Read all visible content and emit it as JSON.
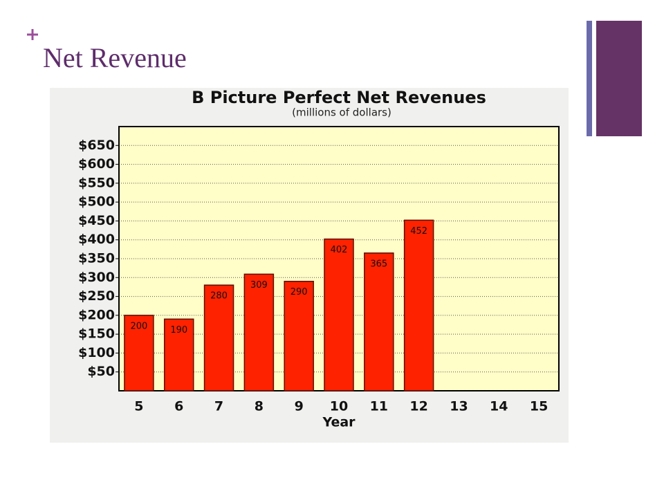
{
  "slide": {
    "title": "Net Revenue"
  },
  "chart_data": {
    "type": "bar",
    "title": "B Picture Perfect Net Revenues",
    "subtitle": "(millions of dollars)",
    "x_label": "Year",
    "categories": [
      "5",
      "6",
      "7",
      "8",
      "9",
      "10",
      "11",
      "12",
      "13",
      "14",
      "15"
    ],
    "values": [
      200,
      190,
      280,
      309,
      290,
      402,
      365,
      452,
      null,
      null,
      null
    ],
    "color": "#ff2200",
    "ylim": [
      0,
      700
    ],
    "yticks": [
      {
        "value": 50,
        "label": "$50"
      },
      {
        "value": 100,
        "label": "$100"
      },
      {
        "value": 150,
        "label": "$150"
      },
      {
        "value": 200,
        "label": "$200"
      },
      {
        "value": 250,
        "label": "$250"
      },
      {
        "value": 300,
        "label": "$300"
      },
      {
        "value": 350,
        "label": "$350"
      },
      {
        "value": 400,
        "label": "$400"
      },
      {
        "value": 450,
        "label": "$450"
      },
      {
        "value": 500,
        "label": "$500"
      },
      {
        "value": 550,
        "label": "$550"
      },
      {
        "value": 600,
        "label": "$600"
      },
      {
        "value": 650,
        "label": "$650"
      }
    ],
    "grid": true
  }
}
